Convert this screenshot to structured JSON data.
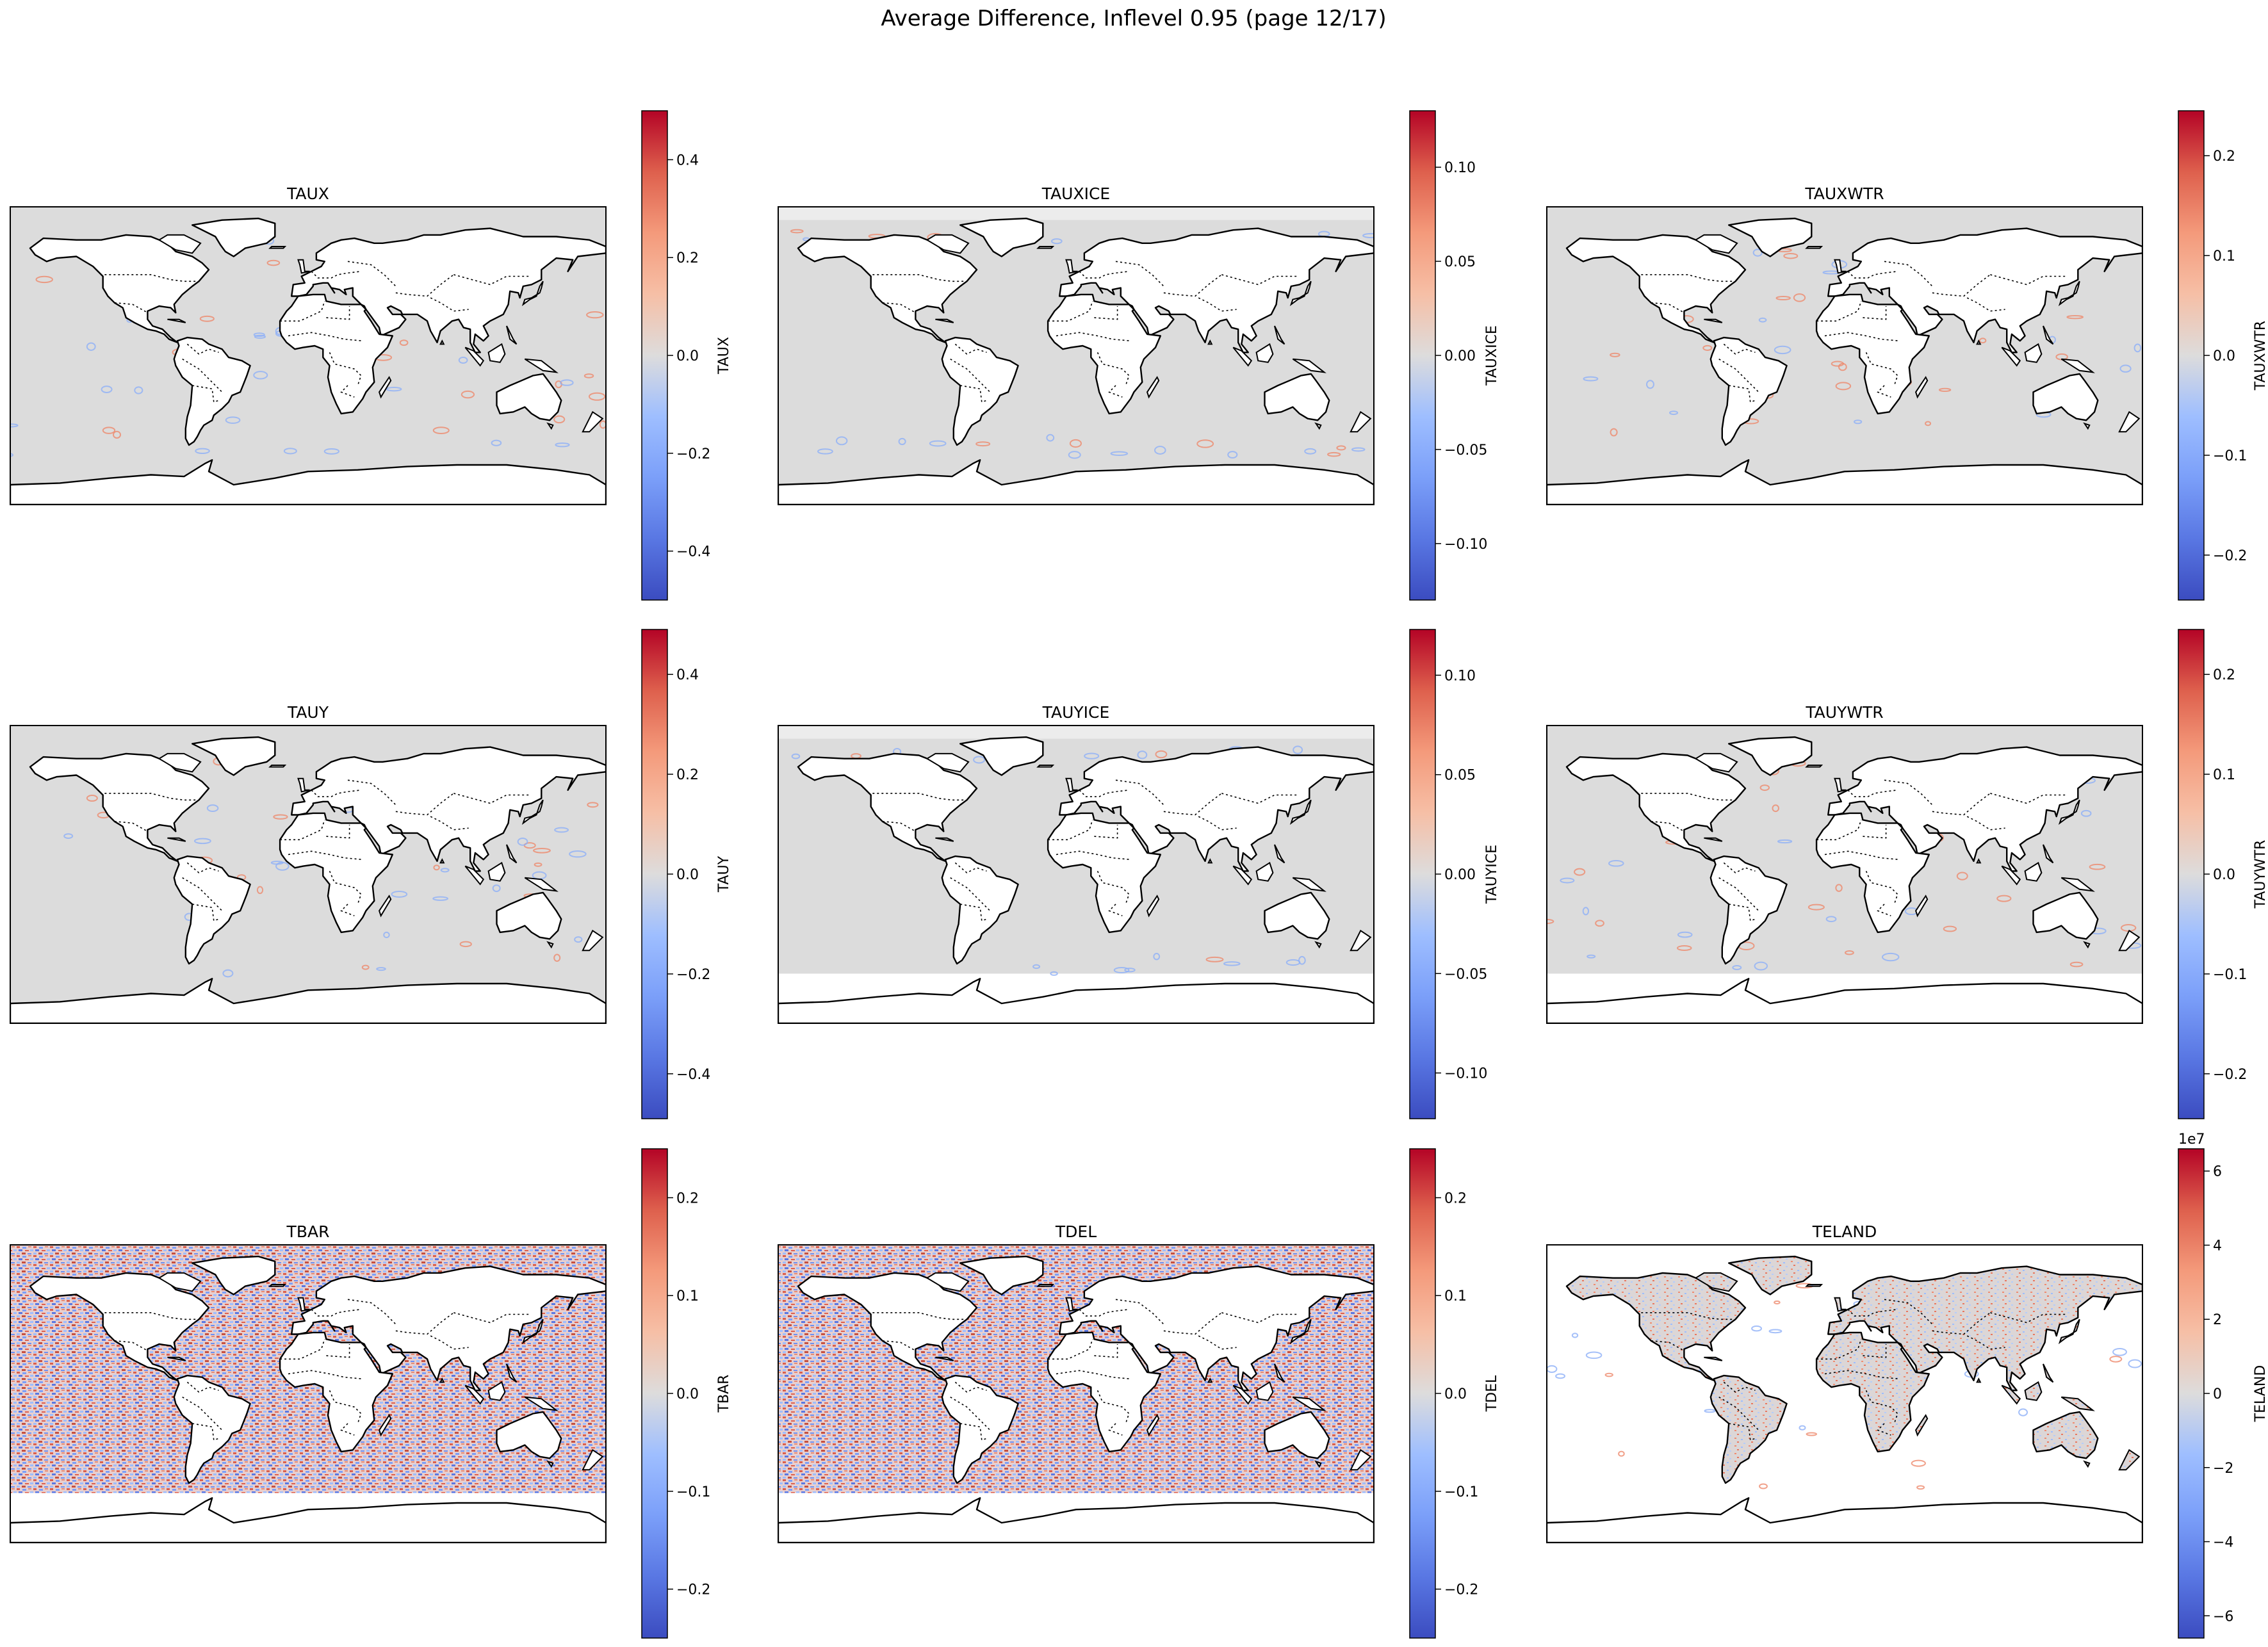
{
  "figure": {
    "suptitle": "Average Difference, Inflevel 0.95 (page 12/17)",
    "colormap": "coolwarm",
    "colors": {
      "map_background": "#dcdcdc",
      "land": "#ffffff",
      "coast": "#000000",
      "cold": "#3b4cc0",
      "neutral": "#dddddd",
      "warm": "#b40426"
    }
  },
  "panels": [
    {
      "title": "TAUX",
      "cbar_label": "TAUX",
      "vlim": [
        -0.5,
        0.5
      ],
      "ticks": [
        "-0.4",
        "-0.2",
        "0.0",
        "0.2",
        "0.4"
      ],
      "tick_values": [
        -0.4,
        -0.2,
        0,
        0.2,
        0.4
      ],
      "offset_text": "",
      "field": "sparse",
      "land_fill": false,
      "antarctic_ocean_gap": false
    },
    {
      "title": "TAUXICE",
      "cbar_label": "TAUXICE",
      "vlim": [
        -0.13,
        0.13
      ],
      "ticks": [
        "-0.10",
        "-0.05",
        "0.00",
        "0.05",
        "0.10"
      ],
      "tick_values": [
        -0.1,
        -0.05,
        0,
        0.05,
        0.1
      ],
      "offset_text": "",
      "field": "ice",
      "land_fill": false,
      "antarctic_ocean_gap": false
    },
    {
      "title": "TAUXWTR",
      "cbar_label": "TAUXWTR",
      "vlim": [
        -0.245,
        0.245
      ],
      "ticks": [
        "-0.2",
        "-0.1",
        "0.0",
        "0.1",
        "0.2"
      ],
      "tick_values": [
        -0.2,
        -0.1,
        0,
        0.1,
        0.2
      ],
      "offset_text": "",
      "field": "sparse",
      "land_fill": false,
      "antarctic_ocean_gap": false
    },
    {
      "title": "TAUY",
      "cbar_label": "TAUY",
      "vlim": [
        -0.49,
        0.49
      ],
      "ticks": [
        "-0.4",
        "-0.2",
        "0.0",
        "0.2",
        "0.4"
      ],
      "tick_values": [
        -0.4,
        -0.2,
        0,
        0.2,
        0.4
      ],
      "offset_text": "",
      "field": "sparse",
      "land_fill": false,
      "antarctic_ocean_gap": false
    },
    {
      "title": "TAUYICE",
      "cbar_label": "TAUYICE",
      "vlim": [
        -0.123,
        0.123
      ],
      "ticks": [
        "-0.10",
        "-0.05",
        "0.00",
        "0.05",
        "0.10"
      ],
      "tick_values": [
        -0.1,
        -0.05,
        0,
        0.05,
        0.1
      ],
      "offset_text": "",
      "field": "ice",
      "land_fill": false,
      "antarctic_ocean_gap": true
    },
    {
      "title": "TAUYWTR",
      "cbar_label": "TAUYWTR",
      "vlim": [
        -0.245,
        0.245
      ],
      "ticks": [
        "-0.2",
        "-0.1",
        "0.0",
        "0.1",
        "0.2"
      ],
      "tick_values": [
        -0.2,
        -0.1,
        0,
        0.1,
        0.2
      ],
      "offset_text": "",
      "field": "sparse",
      "land_fill": false,
      "antarctic_ocean_gap": true
    },
    {
      "title": "TBAR",
      "cbar_label": "TBAR",
      "vlim": [
        -0.25,
        0.25
      ],
      "ticks": [
        "-0.2",
        "-0.1",
        "0.0",
        "0.1",
        "0.2"
      ],
      "tick_values": [
        -0.2,
        -0.1,
        0,
        0.1,
        0.2
      ],
      "offset_text": "",
      "field": "noise",
      "land_fill": false,
      "antarctic_ocean_gap": true
    },
    {
      "title": "TDEL",
      "cbar_label": "TDEL",
      "vlim": [
        -0.25,
        0.25
      ],
      "ticks": [
        "-0.2",
        "-0.1",
        "0.0",
        "0.1",
        "0.2"
      ],
      "tick_values": [
        -0.2,
        -0.1,
        0,
        0.1,
        0.2
      ],
      "offset_text": "",
      "field": "noise",
      "land_fill": false,
      "antarctic_ocean_gap": true
    },
    {
      "title": "TELAND",
      "cbar_label": "TELAND",
      "vlim": [
        -6.6,
        6.6
      ],
      "ticks": [
        "-6",
        "-4",
        "-2",
        "0",
        "2",
        "4",
        "6"
      ],
      "tick_values": [
        -6,
        -4,
        -2,
        0,
        2,
        4,
        6
      ],
      "offset_text": "1e7",
      "field": "land",
      "land_fill": true,
      "antarctic_ocean_gap": false
    }
  ]
}
